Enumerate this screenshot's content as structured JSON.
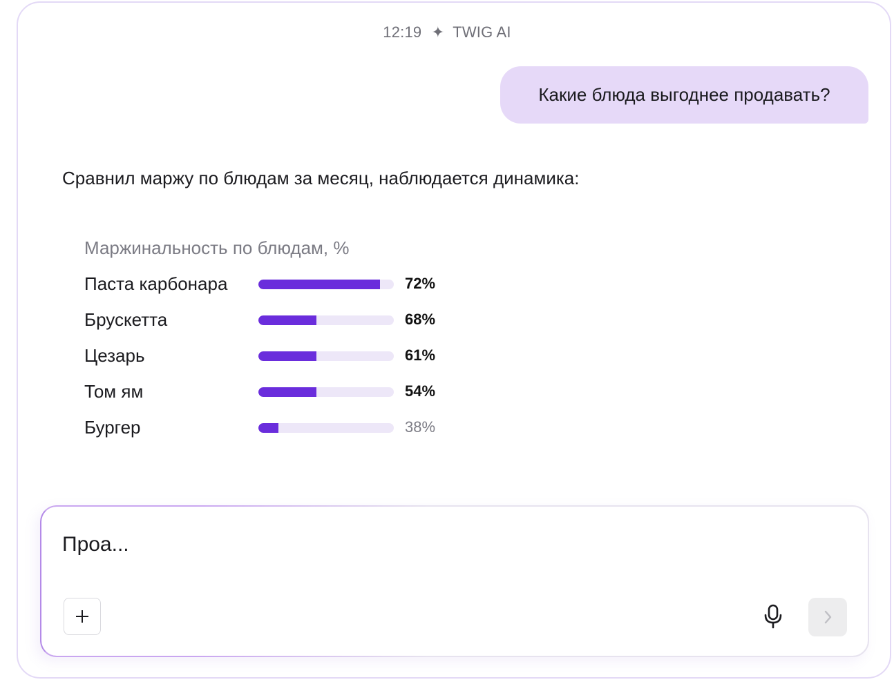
{
  "header": {
    "time": "12:19",
    "assistant_name": "TWIG AI"
  },
  "messages": {
    "user": "Какие блюда выгоднее продавать?",
    "assistant": "Сравнил маржу по блюдам за месяц, наблюдается динамика:"
  },
  "chart_data": {
    "type": "bar",
    "title": "Маржинальность по блюдам, %",
    "categories": [
      "Паста карбонара",
      "Брускетта",
      "Цезарь",
      "Том ям",
      "Бургер"
    ],
    "values": [
      72,
      68,
      61,
      54,
      38
    ],
    "value_labels": [
      "72%",
      "68%",
      "61%",
      "54%",
      "38%"
    ],
    "bar_fill": [
      0.9,
      0.43,
      0.43,
      0.43,
      0.15
    ],
    "colors": {
      "fill": "#6a2ddc",
      "track": "#ede7f8",
      "muted_label": "#7b7b84"
    }
  },
  "composer": {
    "value": "Проа..."
  },
  "icons": {
    "header": "sparkle-icon",
    "add": "plus-icon",
    "mic": "microphone-icon",
    "send": "chevron-right-icon"
  },
  "colors": {
    "accent": "#6a2ddc",
    "bubble": "#e6d9f8",
    "frame_border": "#e3d9f6"
  }
}
